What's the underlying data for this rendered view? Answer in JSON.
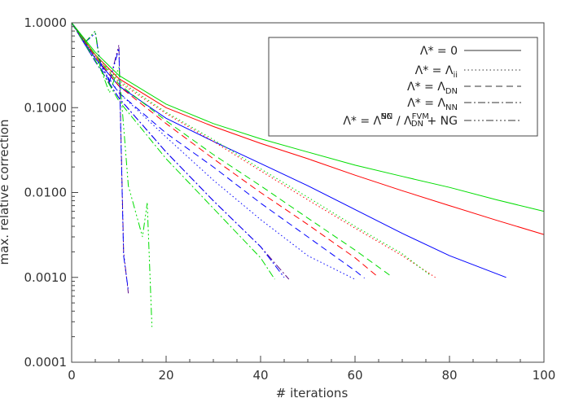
{
  "chart_data": {
    "type": "line",
    "xlabel": "# iterations",
    "ylabel": "max. relative correction",
    "xlim": [
      0,
      100
    ],
    "ylim": [
      0.0001,
      1.0
    ],
    "yscale": "log",
    "x_ticks": [
      0,
      20,
      40,
      60,
      80,
      100
    ],
    "y_ticks": [
      0.0001,
      0.001,
      0.01,
      0.1,
      1.0
    ],
    "y_tick_labels": [
      "0.0001",
      "0.0010",
      "0.0100",
      "0.1000",
      "1.0000"
    ],
    "grid": false,
    "legend_position": "top-right",
    "colors": {
      "blue": "#0000ff",
      "red": "#ff0000",
      "green": "#00dd00",
      "purple": "#5a0a8a",
      "axis": "#444444"
    },
    "legend": [
      {
        "base": "Λ* = 0",
        "sub": "",
        "sup": "",
        "tail": "",
        "dash": "solid"
      },
      {
        "base": "Λ* = Λ",
        "sub": "ii",
        "sup": "",
        "tail": "",
        "dash": "dotted"
      },
      {
        "base": "Λ* = Λ",
        "sub": "DN",
        "sup": "",
        "tail": "",
        "dash": "dashed"
      },
      {
        "base": "Λ* = Λ",
        "sub": "NN",
        "sup": "",
        "tail": "",
        "dash": "dashdot"
      },
      {
        "base": "Λ* = Λ",
        "sub": "NN",
        "sup": "SC",
        "tail": "/ Λ",
        "tail_sub": "DN",
        "tail_sup": "FVM",
        "tail2": "+ NG",
        "dash": "dashdotdotdot"
      }
    ],
    "series": [
      {
        "color": "blue",
        "dash": "solid",
        "x": [
          0,
          5,
          10,
          20,
          30,
          40,
          50,
          60,
          70,
          80,
          92
        ],
        "y": [
          1.0,
          0.38,
          0.18,
          0.075,
          0.04,
          0.022,
          0.012,
          0.0063,
          0.0033,
          0.0018,
          0.001
        ]
      },
      {
        "color": "red",
        "dash": "solid",
        "x": [
          0,
          5,
          10,
          20,
          30,
          40,
          50,
          60,
          70,
          80,
          90,
          100
        ],
        "y": [
          1.0,
          0.42,
          0.22,
          0.1,
          0.06,
          0.038,
          0.025,
          0.016,
          0.0105,
          0.007,
          0.0047,
          0.0032
        ]
      },
      {
        "color": "green",
        "dash": "solid",
        "x": [
          0,
          5,
          10,
          20,
          30,
          40,
          50,
          60,
          70,
          80,
          90,
          100
        ],
        "y": [
          1.0,
          0.45,
          0.24,
          0.11,
          0.065,
          0.043,
          0.03,
          0.021,
          0.0155,
          0.0115,
          0.0082,
          0.006
        ]
      },
      {
        "color": "blue",
        "dash": "dotted",
        "x": [
          0,
          5,
          10,
          20,
          30,
          40,
          50,
          60
        ],
        "y": [
          1.0,
          0.38,
          0.15,
          0.045,
          0.014,
          0.0048,
          0.0018,
          0.00095
        ]
      },
      {
        "color": "red",
        "dash": "dotted",
        "x": [
          0,
          5,
          10,
          20,
          30,
          40,
          50,
          60,
          70,
          77
        ],
        "y": [
          1.0,
          0.4,
          0.2,
          0.085,
          0.04,
          0.018,
          0.0082,
          0.0038,
          0.0018,
          0.001
        ]
      },
      {
        "color": "green",
        "dash": "dotted",
        "x": [
          0,
          5,
          10,
          20,
          30,
          40,
          50,
          60,
          70,
          76
        ],
        "y": [
          1.0,
          0.42,
          0.21,
          0.088,
          0.042,
          0.019,
          0.0088,
          0.004,
          0.0019,
          0.00105
        ]
      },
      {
        "color": "blue",
        "dash": "dashed",
        "x": [
          0,
          5,
          10,
          20,
          30,
          40,
          50,
          60,
          62
        ],
        "y": [
          1.0,
          0.35,
          0.15,
          0.05,
          0.02,
          0.0075,
          0.003,
          0.0012,
          0.00098
        ]
      },
      {
        "color": "red",
        "dash": "dashed",
        "x": [
          0,
          5,
          10,
          20,
          30,
          40,
          50,
          60,
          65
        ],
        "y": [
          1.0,
          0.4,
          0.18,
          0.065,
          0.025,
          0.01,
          0.0042,
          0.0017,
          0.001
        ]
      },
      {
        "color": "green",
        "dash": "dashed",
        "x": [
          0,
          5,
          10,
          20,
          30,
          40,
          50,
          60,
          68
        ],
        "y": [
          1.0,
          0.42,
          0.19,
          0.07,
          0.028,
          0.012,
          0.005,
          0.0021,
          0.001
        ]
      },
      {
        "color": "purple",
        "dash": "dashdot",
        "x": [
          0,
          5,
          10,
          20,
          30,
          40,
          46
        ],
        "y": [
          1.0,
          0.35,
          0.13,
          0.03,
          0.008,
          0.0023,
          0.00095
        ]
      },
      {
        "color": "blue",
        "dash": "dashdot",
        "x": [
          0,
          5,
          10,
          20,
          30,
          40,
          45
        ],
        "y": [
          1.0,
          0.35,
          0.13,
          0.03,
          0.008,
          0.0023,
          0.001
        ]
      },
      {
        "color": "green",
        "dash": "dashdot",
        "x": [
          0,
          5,
          10,
          20,
          30,
          40,
          43
        ],
        "y": [
          1.0,
          0.36,
          0.12,
          0.025,
          0.0065,
          0.0017,
          0.00095
        ]
      },
      {
        "color": "purple",
        "dash": "dashdotdotdot",
        "x": [
          0,
          3,
          5,
          6,
          8,
          10,
          11,
          12
        ],
        "y": [
          1.0,
          0.6,
          0.8,
          0.35,
          0.2,
          0.55,
          0.002,
          0.00065
        ]
      },
      {
        "color": "blue",
        "dash": "dashdotdotdot",
        "x": [
          0,
          3,
          5,
          6,
          8,
          10,
          11,
          12
        ],
        "y": [
          1.0,
          0.6,
          0.75,
          0.35,
          0.2,
          0.5,
          0.0018,
          0.0007
        ]
      },
      {
        "color": "green",
        "dash": "dashdotdotdot",
        "x": [
          0,
          3,
          5,
          6,
          8,
          10,
          12,
          15,
          16,
          17
        ],
        "y": [
          1.0,
          0.6,
          0.8,
          0.3,
          0.15,
          0.3,
          0.012,
          0.003,
          0.0075,
          0.00026
        ]
      }
    ]
  }
}
